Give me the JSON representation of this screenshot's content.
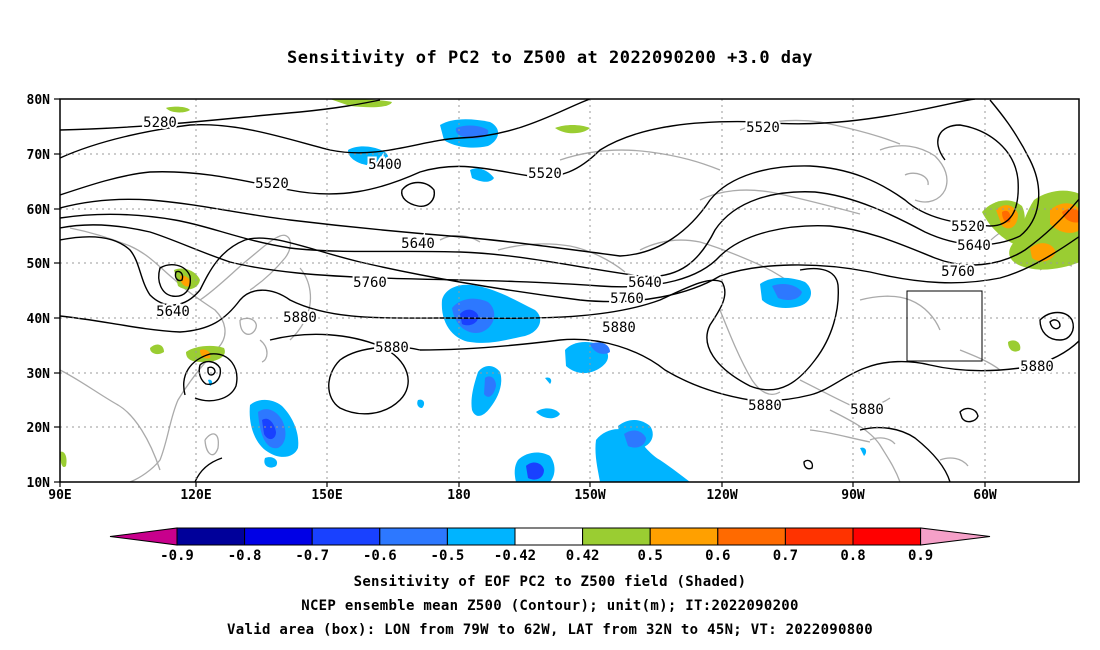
{
  "title": "Sensitivity of PC2 to Z500 at 2022090200 +3.0 day",
  "lat_labels": [
    "80N",
    "70N",
    "60N",
    "50N",
    "40N",
    "30N",
    "20N",
    "10N"
  ],
  "lon_labels": [
    "90E",
    "120E",
    "150E",
    "180",
    "150W",
    "120W",
    "90W",
    "60W"
  ],
  "contour_labels": [
    "5280",
    "5400",
    "5520",
    "5520",
    "5520",
    "5520",
    "5640",
    "5640",
    "5640",
    "5640",
    "5760",
    "5760",
    "5760",
    "5880",
    "5880",
    "5880",
    "5880",
    "5880",
    "5880"
  ],
  "colorbar": {
    "ticks": [
      "-0.9",
      "-0.8",
      "-0.7",
      "-0.6",
      "-0.5",
      "-0.42",
      "0.42",
      "0.5",
      "0.6",
      "0.7",
      "0.8",
      "0.9"
    ],
    "colors": [
      "#00009a",
      "#0000e6",
      "#1941ff",
      "#2d78ff",
      "#00b4ff",
      "#ffffff",
      "#9acd32",
      "#ffa000",
      "#ff6a00",
      "#ff3300",
      "#ff0000"
    ],
    "left_arrow_color": "#c8008c",
    "right_arrow_color": "#f5a0c8"
  },
  "captions": [
    "Sensitivity of EOF PC2 to Z500 field (Shaded)",
    "NCEP ensemble mean Z500 (Contour); unit(m); IT:2022090200",
    "Valid area (box): LON from 79W to 62W, LAT from 32N to 45N; VT: 2022090800"
  ]
}
